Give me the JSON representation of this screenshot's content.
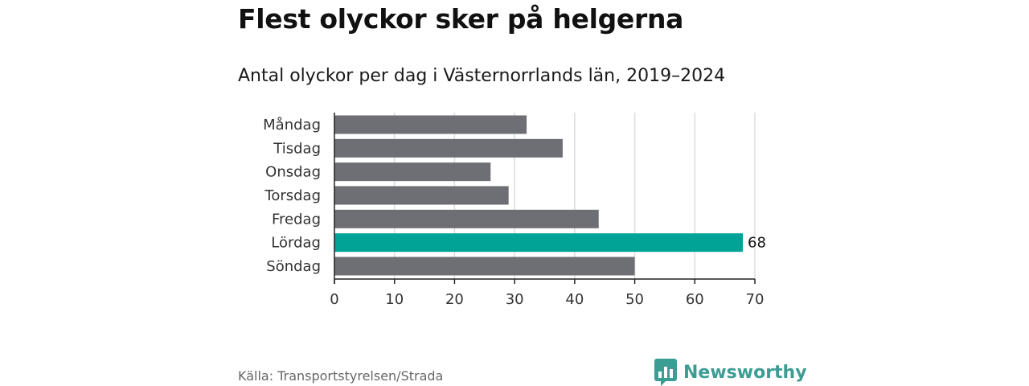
{
  "title": "Flest olyckor sker på helgerna",
  "subtitle": "Antal olyckor per dag i Västernorrlands län, 2019–2024",
  "source": "Källa: Transportstyrelsen/Strada",
  "brand": {
    "name": "Newsworthy",
    "color": "#3c9d94",
    "icon": "bar-chart-speech-bubble-icon"
  },
  "colors": {
    "bar": "#6e6e75",
    "highlight": "#00a396",
    "grid": "#dddddd",
    "axis": "#222222"
  },
  "chart_data": {
    "type": "bar",
    "orientation": "horizontal",
    "title": "Flest olyckor sker på helgerna",
    "subtitle": "Antal olyckor per dag i Västernorrlands län, 2019–2024",
    "categories": [
      "Måndag",
      "Tisdag",
      "Onsdag",
      "Torsdag",
      "Fredag",
      "Lördag",
      "Söndag"
    ],
    "values": [
      32,
      38,
      26,
      29,
      44,
      68,
      50
    ],
    "highlight_index": 5,
    "data_labels": {
      "5": "68"
    },
    "xlim": [
      0,
      70
    ],
    "xticks": [
      0,
      10,
      20,
      30,
      40,
      50,
      60,
      70
    ],
    "grid": "vertical",
    "xlabel": "",
    "ylabel": ""
  }
}
